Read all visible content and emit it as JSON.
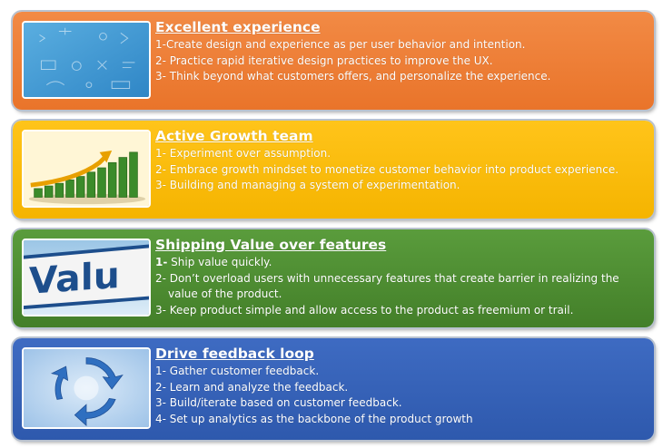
{
  "cards": [
    {
      "title": "Excellent experience",
      "color": "#ee7d35",
      "icon": "screen-ui-icon",
      "lines": [
        "1-Create design and experience as per user behavior and intention.",
        "2- Practice rapid iterative design practices to improve the UX.",
        "3- Think beyond what customers offers, and personalize the experience."
      ]
    },
    {
      "title": "Active Growth team",
      "color": "#ffc000",
      "icon": "growth-bars-icon",
      "lines": [
        "1- Experiment over  assumption.",
        "2- Embrace growth  mindset to monetize customer behavior into product experience.",
        "3- Building and managing a system of experimentation."
      ]
    },
    {
      "title": "Shipping Value over features",
      "color": "#4f8f33",
      "icon": "value-sign-icon",
      "line1_num": "1-",
      "line1_text": " Ship value quickly.",
      "line2_a": "2- Don’t overload users with unnecessary features that create barrier in realizing the",
      "line2_b": "value of the product.",
      "line3": "3- Keep product simple and allow access to the product as freemium or trail.",
      "sign_text": "Valu"
    },
    {
      "title": "Drive feedback loop",
      "color": "#3563b9",
      "icon": "feedback-loop-icon",
      "lines": [
        "1- Gather  customer feedback.",
        "2- Learn and analyze the feedback.",
        "3- Build/iterate based on customer feedback.",
        "4- Set up analytics as the backbone of the product growth"
      ]
    }
  ]
}
